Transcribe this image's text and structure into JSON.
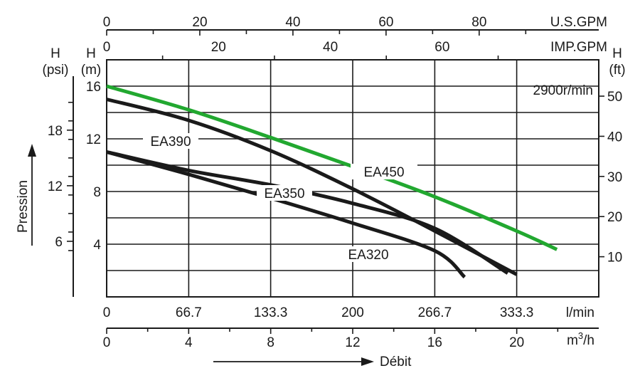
{
  "chart_data": {
    "type": "line",
    "speed_label": "2900r/min",
    "x_axis": {
      "unit": "l/min",
      "range": [
        0,
        400
      ],
      "ticks": [
        0,
        66.7,
        133.3,
        200,
        266.7,
        333.3
      ],
      "tick_labels": [
        "0",
        "66.7",
        "133.3",
        "200",
        "266.7",
        "333.3"
      ]
    },
    "x2_axis": {
      "unit_main": "m",
      "unit_sup": "3",
      "unit_tail": "/h",
      "range": [
        0,
        24
      ],
      "ticks": [
        0,
        4,
        8,
        12,
        16,
        20
      ],
      "tick_labels": [
        "0",
        "4",
        "8",
        "12",
        "16",
        "20"
      ]
    },
    "top_axis_usgpm": {
      "unit": "U.S.GPM",
      "ticks": [
        0,
        20,
        40,
        60,
        80
      ],
      "tick_labels": [
        "0",
        "20",
        "40",
        "60",
        "80"
      ]
    },
    "top_axis_impgpm": {
      "unit": "IMP.GPM",
      "ticks": [
        0,
        20,
        40,
        60
      ],
      "tick_labels": [
        "0",
        "20",
        "40",
        "60"
      ]
    },
    "y_axis_m": {
      "header": "H",
      "unit": "(m)",
      "range": [
        0,
        16
      ],
      "ticks": [
        4,
        8,
        12,
        16
      ],
      "tick_labels": [
        "4",
        "8",
        "12",
        "16"
      ]
    },
    "y_axis_psi": {
      "header": "H",
      "unit": "(psi)",
      "ticks": [
        6,
        12,
        18
      ],
      "tick_labels": [
        "6",
        "12",
        "18"
      ]
    },
    "y_axis_ft": {
      "header": "H",
      "unit": "(ft)",
      "ticks": [
        10,
        20,
        30,
        40,
        50
      ],
      "tick_labels": [
        "10",
        "20",
        "30",
        "40",
        "50"
      ]
    },
    "pressure_label": "Pression",
    "flow_label": "Débit",
    "series": [
      {
        "name": "EA450",
        "color": "#22a830",
        "x": [
          0,
          66.7,
          133.3,
          200,
          266.7,
          333.3,
          366
        ],
        "y": [
          16.0,
          14.2,
          12.1,
          9.9,
          7.6,
          5.0,
          3.6
        ]
      },
      {
        "name": "EA390",
        "color": "#1a1a1a",
        "x": [
          0,
          66.7,
          133.3,
          200,
          266.7,
          333.3
        ],
        "y": [
          15.0,
          13.4,
          11.1,
          8.2,
          5.0,
          1.7
        ]
      },
      {
        "name": "EA350",
        "color": "#1a1a1a",
        "x": [
          0,
          66.7,
          133.3,
          200,
          266.7,
          326
        ],
        "y": [
          11.0,
          9.6,
          8.5,
          7.1,
          5.2,
          1.8
        ]
      },
      {
        "name": "EA320",
        "color": "#1a1a1a",
        "x": [
          0,
          66.7,
          133.3,
          200,
          266.7,
          291
        ],
        "y": [
          11.0,
          9.3,
          7.5,
          5.6,
          3.5,
          1.5
        ]
      }
    ],
    "series_labels": [
      "EA450",
      "EA390",
      "EA350",
      "EA320"
    ],
    "grid": true
  }
}
